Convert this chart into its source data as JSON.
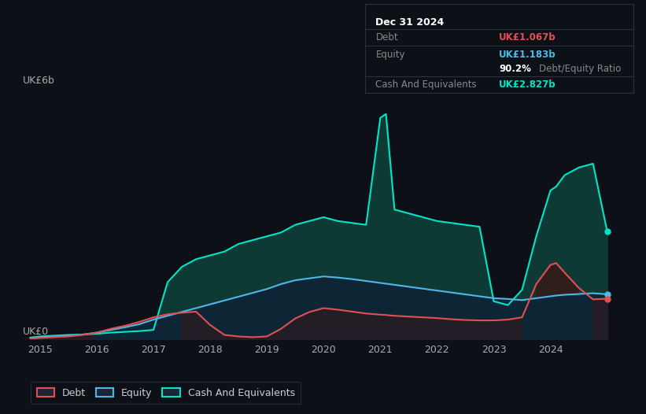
{
  "bg_color": "#0d1117",
  "plot_bg_color": "#0d1117",
  "grid_color": "#2a3040",
  "ylabel_text": "UK£6b",
  "ylabel0_text": "UK£0",
  "ylim": [
    0,
    6.5
  ],
  "xlim": [
    2014.75,
    2025.4
  ],
  "xticks": [
    2015,
    2016,
    2017,
    2018,
    2019,
    2020,
    2021,
    2022,
    2023,
    2024
  ],
  "debt_color": "#e05050",
  "equity_color": "#4db8e8",
  "cash_color": "#00e5c8",
  "cash_fill_color": "#0d3a35",
  "equity_fill_color": "#0d2535",
  "debt_fill_color": "#3a1818",
  "tooltip_bg": "#0d1117",
  "tooltip_border": "#2a3040",
  "dates": [
    2014.83,
    2015.0,
    2015.25,
    2015.5,
    2015.75,
    2016.0,
    2016.25,
    2016.5,
    2016.75,
    2017.0,
    2017.25,
    2017.5,
    2017.75,
    2018.0,
    2018.25,
    2018.5,
    2018.75,
    2019.0,
    2019.25,
    2019.5,
    2019.75,
    2020.0,
    2020.25,
    2020.5,
    2020.75,
    2021.0,
    2021.1,
    2021.25,
    2021.5,
    2021.75,
    2022.0,
    2022.25,
    2022.5,
    2022.75,
    2023.0,
    2023.25,
    2023.5,
    2023.75,
    2024.0,
    2024.1,
    2024.25,
    2024.5,
    2024.75,
    2025.0
  ],
  "cash": [
    0.05,
    0.08,
    0.1,
    0.12,
    0.13,
    0.15,
    0.18,
    0.2,
    0.22,
    0.25,
    1.5,
    1.9,
    2.1,
    2.2,
    2.3,
    2.5,
    2.6,
    2.7,
    2.8,
    3.0,
    3.1,
    3.2,
    3.1,
    3.05,
    3.0,
    5.8,
    5.9,
    3.4,
    3.3,
    3.2,
    3.1,
    3.05,
    3.0,
    2.95,
    1.0,
    0.9,
    1.3,
    2.7,
    3.9,
    4.0,
    4.3,
    4.5,
    4.6,
    2.83
  ],
  "equity": [
    0.04,
    0.06,
    0.08,
    0.1,
    0.13,
    0.18,
    0.25,
    0.32,
    0.4,
    0.52,
    0.62,
    0.72,
    0.82,
    0.92,
    1.02,
    1.12,
    1.22,
    1.32,
    1.45,
    1.55,
    1.6,
    1.65,
    1.62,
    1.58,
    1.53,
    1.48,
    1.46,
    1.43,
    1.38,
    1.33,
    1.28,
    1.23,
    1.18,
    1.13,
    1.08,
    1.06,
    1.03,
    1.08,
    1.13,
    1.15,
    1.17,
    1.19,
    1.21,
    1.183
  ],
  "debt": [
    0.02,
    0.04,
    0.06,
    0.08,
    0.12,
    0.18,
    0.28,
    0.36,
    0.46,
    0.58,
    0.66,
    0.7,
    0.73,
    0.38,
    0.12,
    0.08,
    0.06,
    0.08,
    0.28,
    0.55,
    0.72,
    0.82,
    0.78,
    0.73,
    0.68,
    0.65,
    0.64,
    0.62,
    0.6,
    0.58,
    0.56,
    0.53,
    0.51,
    0.5,
    0.5,
    0.52,
    0.58,
    1.45,
    1.95,
    2.0,
    1.75,
    1.35,
    1.05,
    1.067
  ],
  "tooltip": {
    "date": "Dec 31 2024",
    "debt_label": "Debt",
    "debt_value": "UK£1.067b",
    "equity_label": "Equity",
    "equity_value": "UK£1.183b",
    "ratio_value": "90.2%",
    "ratio_label": "Debt/Equity Ratio",
    "cash_label": "Cash And Equivalents",
    "cash_value": "UK£2.827b"
  },
  "legend": [
    {
      "label": "Debt",
      "color": "#e05050"
    },
    {
      "label": "Equity",
      "color": "#4db8e8"
    },
    {
      "label": "Cash And Equivalents",
      "color": "#00e5c8"
    }
  ]
}
